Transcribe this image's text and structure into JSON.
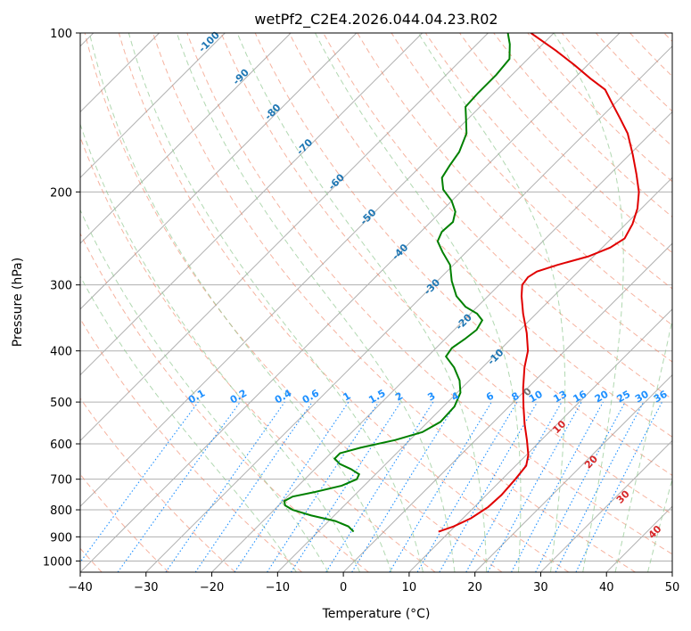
{
  "chart_data": {
    "type": "line",
    "subtype": "skew-t log-p",
    "title": "wetPf2_C2E4.2026.044.04.23.R02",
    "xlabel": "Temperature (°C)",
    "ylabel": "Pressure (hPa)",
    "xlim": [
      -40,
      50
    ],
    "ylim_hpa": [
      1050,
      100
    ],
    "y_scale": "log",
    "skew_deg_c_per_log_decade_hint": 45,
    "grid": true,
    "x_ticks": [
      -40,
      -30,
      -20,
      -10,
      0,
      10,
      20,
      30,
      40,
      50
    ],
    "y_ticks": [
      100,
      200,
      300,
      400,
      500,
      600,
      700,
      800,
      900,
      1000
    ],
    "isotherms_c": [
      -150,
      -140,
      -130,
      -120,
      -110,
      -100,
      -90,
      -80,
      -70,
      -60,
      -50,
      -40,
      -30,
      -20,
      -10,
      0,
      10,
      20,
      30,
      40,
      50
    ],
    "dry_adiabat_labels": [
      "-100",
      "-90",
      "-80",
      "-70",
      "-60",
      "-50",
      "-40",
      "-30",
      "-20",
      "-10",
      "0",
      "10",
      "20",
      "30",
      "40"
    ],
    "dry_adiabat_label_temps_c": [
      -100,
      -90,
      -80,
      -70,
      -60,
      -50,
      -40,
      -30,
      -20,
      -10,
      0,
      10,
      20,
      30,
      40
    ],
    "mixing_ratio_labels": [
      "0.1",
      "0.2",
      "0.4",
      "0.6",
      "1",
      "1.5",
      "2",
      "3",
      "4",
      "6",
      "8",
      "10",
      "13",
      "16",
      "20",
      "25",
      "30",
      "36"
    ],
    "mixing_ratio_values_gkg": [
      0.1,
      0.2,
      0.4,
      0.6,
      1,
      1.5,
      2,
      3,
      4,
      6,
      8,
      10,
      13,
      16,
      20,
      25,
      30,
      36
    ],
    "series": [
      {
        "role": "temperature",
        "color": "#e00000",
        "points": [
          {
            "p": 880,
            "t": 8.3
          },
          {
            "p": 860,
            "t": 9.8
          },
          {
            "p": 830,
            "t": 11.2
          },
          {
            "p": 790,
            "t": 12.1
          },
          {
            "p": 750,
            "t": 12.3
          },
          {
            "p": 700,
            "t": 12.0
          },
          {
            "p": 660,
            "t": 11.6
          },
          {
            "p": 630,
            "t": 10.3
          },
          {
            "p": 590,
            "t": 7.8
          },
          {
            "p": 550,
            "t": 5.0
          },
          {
            "p": 510,
            "t": 2.2
          },
          {
            "p": 470,
            "t": -0.7
          },
          {
            "p": 430,
            "t": -3.6
          },
          {
            "p": 400,
            "t": -5.6
          },
          {
            "p": 370,
            "t": -8.5
          },
          {
            "p": 340,
            "t": -12.0
          },
          {
            "p": 315,
            "t": -14.9
          },
          {
            "p": 300,
            "t": -16.5
          },
          {
            "p": 290,
            "t": -16.8
          },
          {
            "p": 283,
            "t": -16.3
          },
          {
            "p": 275,
            "t": -14.2
          },
          {
            "p": 265,
            "t": -10.8
          },
          {
            "p": 255,
            "t": -8.8
          },
          {
            "p": 245,
            "t": -8.0
          },
          {
            "p": 230,
            "t": -9.0
          },
          {
            "p": 215,
            "t": -10.6
          },
          {
            "p": 200,
            "t": -12.9
          },
          {
            "p": 185,
            "t": -16.0
          },
          {
            "p": 170,
            "t": -19.5
          },
          {
            "p": 155,
            "t": -23.5
          },
          {
            "p": 145,
            "t": -27.0
          },
          {
            "p": 135,
            "t": -30.8
          },
          {
            "p": 128,
            "t": -33.6
          },
          {
            "p": 122,
            "t": -37.5
          },
          {
            "p": 115,
            "t": -42.0
          },
          {
            "p": 108,
            "t": -47.0
          },
          {
            "p": 100,
            "t": -53.5
          }
        ]
      },
      {
        "role": "dewpoint",
        "color": "#008000",
        "points": [
          {
            "p": 880,
            "t": -4.6
          },
          {
            "p": 860,
            "t": -6.2
          },
          {
            "p": 840,
            "t": -9.0
          },
          {
            "p": 820,
            "t": -13.5
          },
          {
            "p": 800,
            "t": -17.2
          },
          {
            "p": 785,
            "t": -19.0
          },
          {
            "p": 770,
            "t": -19.8
          },
          {
            "p": 755,
            "t": -19.2
          },
          {
            "p": 740,
            "t": -16.5
          },
          {
            "p": 720,
            "t": -13.4
          },
          {
            "p": 700,
            "t": -12.1
          },
          {
            "p": 685,
            "t": -12.5
          },
          {
            "p": 670,
            "t": -14.5
          },
          {
            "p": 655,
            "t": -17.0
          },
          {
            "p": 640,
            "t": -18.6
          },
          {
            "p": 625,
            "t": -18.6
          },
          {
            "p": 610,
            "t": -16.3
          },
          {
            "p": 590,
            "t": -12.2
          },
          {
            "p": 570,
            "t": -9.3
          },
          {
            "p": 545,
            "t": -8.1
          },
          {
            "p": 510,
            "t": -8.3
          },
          {
            "p": 480,
            "t": -9.5
          },
          {
            "p": 455,
            "t": -11.5
          },
          {
            "p": 430,
            "t": -14.3
          },
          {
            "p": 410,
            "t": -17.2
          },
          {
            "p": 395,
            "t": -17.6
          },
          {
            "p": 380,
            "t": -17.0
          },
          {
            "p": 365,
            "t": -16.6
          },
          {
            "p": 350,
            "t": -17.2
          },
          {
            "p": 340,
            "t": -19.0
          },
          {
            "p": 330,
            "t": -21.8
          },
          {
            "p": 315,
            "t": -24.8
          },
          {
            "p": 295,
            "t": -27.8
          },
          {
            "p": 275,
            "t": -30.5
          },
          {
            "p": 260,
            "t": -33.6
          },
          {
            "p": 248,
            "t": -36.0
          },
          {
            "p": 238,
            "t": -36.8
          },
          {
            "p": 228,
            "t": -36.6
          },
          {
            "p": 218,
            "t": -37.8
          },
          {
            "p": 208,
            "t": -40.0
          },
          {
            "p": 198,
            "t": -43.0
          },
          {
            "p": 188,
            "t": -45.0
          },
          {
            "p": 178,
            "t": -45.7
          },
          {
            "p": 168,
            "t": -46.3
          },
          {
            "p": 155,
            "t": -48.0
          },
          {
            "p": 145,
            "t": -50.4
          },
          {
            "p": 138,
            "t": -52.2
          },
          {
            "p": 130,
            "t": -52.4
          },
          {
            "p": 120,
            "t": -52.4
          },
          {
            "p": 112,
            "t": -52.8
          },
          {
            "p": 105,
            "t": -55.0
          },
          {
            "p": 100,
            "t": -57.0
          }
        ]
      }
    ]
  },
  "colors": {
    "temperature": "#e00000",
    "dewpoint": "#008000",
    "isotherm_grid": "#b0b0b0",
    "dry_adiabat": "#f08060",
    "moist_adiabat": "#90c890",
    "mixing_ratio": "#1e90ff",
    "mixing_ratio_label": "#1e90ff",
    "dry_label_blue": "#1f77b4",
    "dry_label_gray": "#777777",
    "dry_label_red": "#d62728",
    "lcl_curve": "#c8a070"
  }
}
